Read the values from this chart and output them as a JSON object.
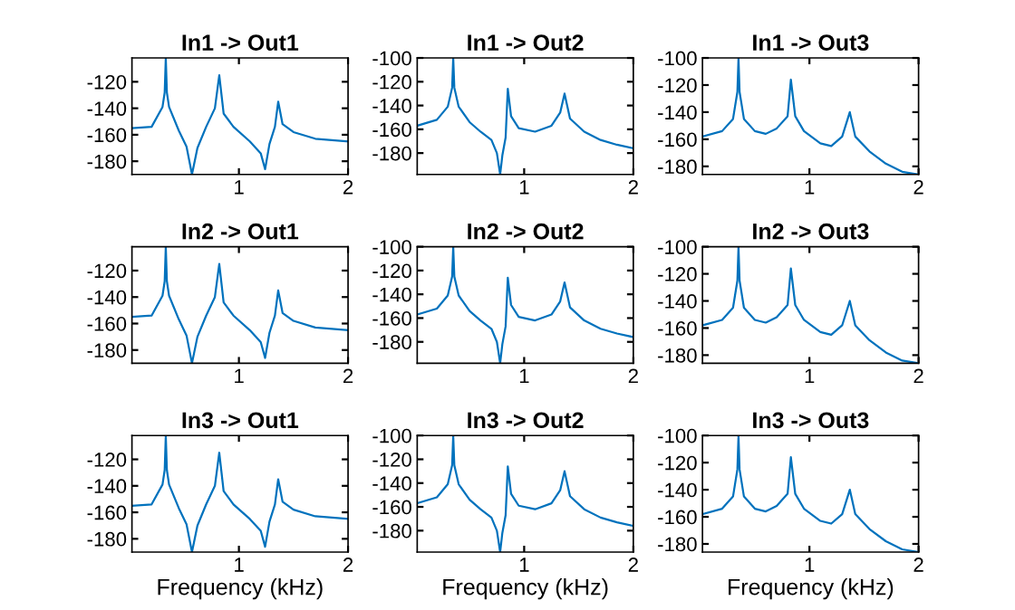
{
  "chart_data": [
    {
      "type": "line",
      "title": "In1 -> Out1",
      "xlim": [
        0.02,
        2
      ],
      "xticks": [
        1,
        2
      ],
      "ylim": [
        -190,
        -102
      ],
      "yticks": [
        -180,
        -160,
        -140,
        -120
      ],
      "series": [
        {
          "color": "#0072bd",
          "x": [
            0.02,
            0.2,
            0.3,
            0.32,
            0.33,
            0.34,
            0.36,
            0.45,
            0.52,
            0.57,
            0.62,
            0.7,
            0.78,
            0.82,
            0.86,
            0.95,
            1.1,
            1.2,
            1.24,
            1.28,
            1.33,
            1.36,
            1.4,
            1.5,
            1.7,
            2.0
          ],
          "values": [
            -155,
            -154,
            -139,
            -128,
            -102,
            -128,
            -139,
            -157,
            -169,
            -190,
            -170,
            -154,
            -140,
            -115,
            -144,
            -154,
            -165,
            -174,
            -186,
            -167,
            -154,
            -135,
            -152,
            -158,
            -163,
            -165
          ]
        }
      ]
    },
    {
      "type": "line",
      "title": "In1 -> Out2",
      "xlim": [
        0.02,
        2
      ],
      "xticks": [
        1,
        2
      ],
      "ylim": [
        -198,
        -100
      ],
      "yticks": [
        -180,
        -160,
        -140,
        -120,
        -100
      ],
      "series": [
        {
          "color": "#0072bd",
          "x": [
            0.02,
            0.2,
            0.3,
            0.34,
            0.35,
            0.36,
            0.4,
            0.5,
            0.6,
            0.7,
            0.75,
            0.78,
            0.8,
            0.83,
            0.85,
            0.88,
            0.95,
            1.1,
            1.25,
            1.33,
            1.37,
            1.42,
            1.55,
            1.7,
            1.85,
            2.0
          ],
          "values": [
            -157,
            -152,
            -141,
            -125,
            -100,
            -125,
            -141,
            -154,
            -162,
            -169,
            -180,
            -198,
            -182,
            -167,
            -126,
            -149,
            -159,
            -162,
            -157,
            -146,
            -130,
            -151,
            -162,
            -169,
            -173,
            -176
          ]
        }
      ]
    },
    {
      "type": "line",
      "title": "In1 -> Out3",
      "xlim": [
        0.02,
        2
      ],
      "xticks": [
        1,
        2
      ],
      "ylim": [
        -186,
        -100
      ],
      "yticks": [
        -180,
        -160,
        -140,
        -120,
        -100
      ],
      "series": [
        {
          "color": "#0072bd",
          "x": [
            0.02,
            0.2,
            0.3,
            0.34,
            0.35,
            0.36,
            0.4,
            0.5,
            0.6,
            0.7,
            0.8,
            0.83,
            0.87,
            0.95,
            1.1,
            1.2,
            1.3,
            1.37,
            1.42,
            1.55,
            1.7,
            1.85,
            2.0
          ],
          "values": [
            -158,
            -154,
            -145,
            -125,
            -100,
            -125,
            -145,
            -154,
            -156,
            -152,
            -143,
            -116,
            -143,
            -154,
            -163,
            -165,
            -158,
            -140,
            -158,
            -169,
            -178,
            -184,
            -186
          ]
        }
      ]
    },
    {
      "type": "line",
      "title": "In2 -> Out1",
      "xlim": [
        0.02,
        2
      ],
      "xticks": [
        1,
        2
      ],
      "ylim": [
        -190,
        -102
      ],
      "yticks": [
        -180,
        -160,
        -140,
        -120
      ],
      "series": [
        {
          "color": "#0072bd",
          "x": [
            0.02,
            0.2,
            0.3,
            0.32,
            0.33,
            0.34,
            0.36,
            0.45,
            0.52,
            0.57,
            0.62,
            0.7,
            0.78,
            0.82,
            0.86,
            0.95,
            1.1,
            1.2,
            1.24,
            1.28,
            1.33,
            1.36,
            1.4,
            1.5,
            1.7,
            2.0
          ],
          "values": [
            -155,
            -154,
            -139,
            -128,
            -102,
            -128,
            -139,
            -157,
            -169,
            -190,
            -170,
            -154,
            -140,
            -115,
            -144,
            -154,
            -165,
            -174,
            -186,
            -167,
            -154,
            -135,
            -152,
            -158,
            -163,
            -165
          ]
        }
      ]
    },
    {
      "type": "line",
      "title": "In2 -> Out2",
      "xlim": [
        0.02,
        2
      ],
      "xticks": [
        1,
        2
      ],
      "ylim": [
        -198,
        -100
      ],
      "yticks": [
        -180,
        -160,
        -140,
        -120,
        -100
      ],
      "series": [
        {
          "color": "#0072bd",
          "x": [
            0.02,
            0.2,
            0.3,
            0.34,
            0.35,
            0.36,
            0.4,
            0.5,
            0.6,
            0.7,
            0.75,
            0.78,
            0.8,
            0.83,
            0.85,
            0.88,
            0.95,
            1.1,
            1.25,
            1.33,
            1.37,
            1.42,
            1.55,
            1.7,
            1.85,
            2.0
          ],
          "values": [
            -157,
            -152,
            -141,
            -125,
            -100,
            -125,
            -141,
            -154,
            -162,
            -169,
            -180,
            -198,
            -182,
            -167,
            -126,
            -149,
            -159,
            -162,
            -157,
            -146,
            -130,
            -151,
            -162,
            -169,
            -173,
            -176
          ]
        }
      ]
    },
    {
      "type": "line",
      "title": "In2 -> Out3",
      "xlim": [
        0.02,
        2
      ],
      "xticks": [
        1,
        2
      ],
      "ylim": [
        -186,
        -100
      ],
      "yticks": [
        -180,
        -160,
        -140,
        -120,
        -100
      ],
      "series": [
        {
          "color": "#0072bd",
          "x": [
            0.02,
            0.2,
            0.3,
            0.34,
            0.35,
            0.36,
            0.4,
            0.5,
            0.6,
            0.7,
            0.8,
            0.83,
            0.87,
            0.95,
            1.1,
            1.2,
            1.3,
            1.37,
            1.42,
            1.55,
            1.7,
            1.85,
            2.0
          ],
          "values": [
            -158,
            -154,
            -145,
            -125,
            -100,
            -125,
            -145,
            -154,
            -156,
            -152,
            -143,
            -116,
            -143,
            -154,
            -163,
            -165,
            -158,
            -140,
            -158,
            -169,
            -178,
            -184,
            -186
          ]
        }
      ]
    },
    {
      "type": "line",
      "title": "In3 -> Out1",
      "xlabel": "Frequency (kHz)",
      "xlim": [
        0.02,
        2
      ],
      "xticks": [
        1,
        2
      ],
      "ylim": [
        -190,
        -102
      ],
      "yticks": [
        -180,
        -160,
        -140,
        -120
      ],
      "series": [
        {
          "color": "#0072bd",
          "x": [
            0.02,
            0.2,
            0.3,
            0.32,
            0.33,
            0.34,
            0.36,
            0.45,
            0.52,
            0.57,
            0.62,
            0.7,
            0.78,
            0.82,
            0.86,
            0.95,
            1.1,
            1.2,
            1.24,
            1.28,
            1.33,
            1.36,
            1.4,
            1.5,
            1.7,
            2.0
          ],
          "values": [
            -155,
            -154,
            -139,
            -128,
            -102,
            -128,
            -139,
            -157,
            -169,
            -190,
            -170,
            -154,
            -140,
            -115,
            -144,
            -154,
            -165,
            -174,
            -186,
            -167,
            -154,
            -135,
            -152,
            -158,
            -163,
            -165
          ]
        }
      ]
    },
    {
      "type": "line",
      "title": "In3 -> Out2",
      "xlabel": "Frequency (kHz)",
      "xlim": [
        0.02,
        2
      ],
      "xticks": [
        1,
        2
      ],
      "ylim": [
        -198,
        -100
      ],
      "yticks": [
        -180,
        -160,
        -140,
        -120,
        -100
      ],
      "series": [
        {
          "color": "#0072bd",
          "x": [
            0.02,
            0.2,
            0.3,
            0.34,
            0.35,
            0.36,
            0.4,
            0.5,
            0.6,
            0.7,
            0.75,
            0.78,
            0.8,
            0.83,
            0.85,
            0.88,
            0.95,
            1.1,
            1.25,
            1.33,
            1.37,
            1.42,
            1.55,
            1.7,
            1.85,
            2.0
          ],
          "values": [
            -157,
            -152,
            -141,
            -125,
            -100,
            -125,
            -141,
            -154,
            -162,
            -169,
            -180,
            -198,
            -182,
            -167,
            -126,
            -149,
            -159,
            -162,
            -157,
            -146,
            -130,
            -151,
            -162,
            -169,
            -173,
            -176
          ]
        }
      ]
    },
    {
      "type": "line",
      "title": "In3 -> Out3",
      "xlabel": "Frequency (kHz)",
      "xlim": [
        0.02,
        2
      ],
      "xticks": [
        1,
        2
      ],
      "ylim": [
        -186,
        -100
      ],
      "yticks": [
        -180,
        -160,
        -140,
        -120,
        -100
      ],
      "series": [
        {
          "color": "#0072bd",
          "x": [
            0.02,
            0.2,
            0.3,
            0.34,
            0.35,
            0.36,
            0.4,
            0.5,
            0.6,
            0.7,
            0.8,
            0.83,
            0.87,
            0.95,
            1.1,
            1.2,
            1.3,
            1.37,
            1.42,
            1.55,
            1.7,
            1.85,
            2.0
          ],
          "values": [
            -158,
            -154,
            -145,
            -125,
            -100,
            -125,
            -145,
            -154,
            -156,
            -152,
            -143,
            -116,
            -143,
            -154,
            -163,
            -165,
            -158,
            -140,
            -158,
            -169,
            -178,
            -184,
            -186
          ]
        }
      ]
    }
  ]
}
